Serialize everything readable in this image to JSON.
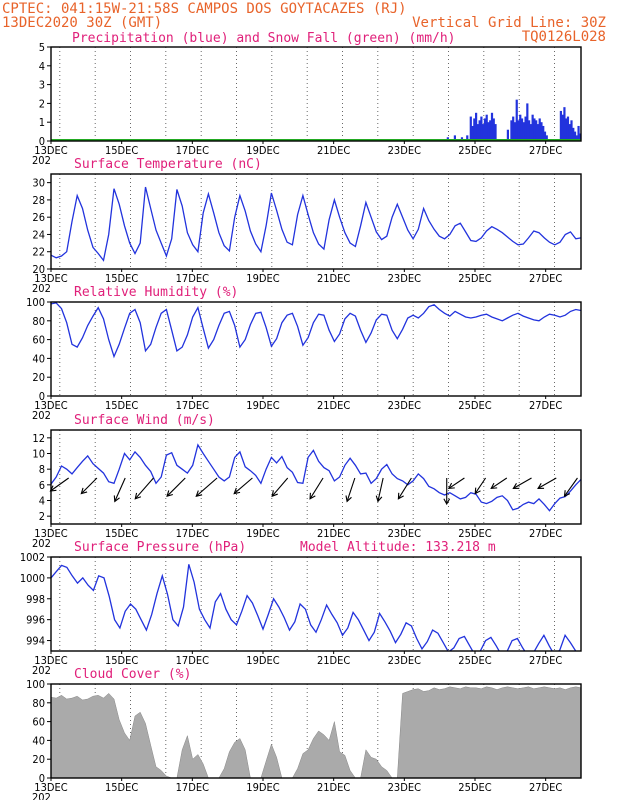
{
  "header": {
    "line1_left": "CPTEC:  041:15W-21:58S  CAMPOS DOS GOYTACAZES (RJ)",
    "line2_left": "13DEC2020 30Z (GMT)",
    "line2_right": "Vertical Grid Line: 30Z",
    "model_id": "TQ0126L028"
  },
  "colors": {
    "header": "#e8632a",
    "panel_title": "#e0207a",
    "series": "#2233dd",
    "snow": "#22aa22",
    "cloud": "#aaaaaa",
    "arrow": "#000000"
  },
  "x_axis": {
    "labels": [
      "13DEC",
      "15DEC",
      "17DEC",
      "19DEC",
      "21DEC",
      "23DEC",
      "25DEC",
      "27DEC"
    ],
    "year_fragment": "202"
  },
  "chart_data": [
    {
      "id": "precip",
      "type": "bar",
      "title": "Precipitation (blue) and Snow Fall (green) (mm/h)",
      "ylim": [
        0,
        5
      ],
      "yticks": [
        "0",
        "1",
        "2",
        "3",
        "4",
        "5"
      ],
      "x_start_day": 13,
      "x_end_day": 28,
      "series": [
        {
          "name": "Precipitation",
          "x_day": [
            24.2,
            24.4,
            24.6,
            24.75,
            24.85,
            24.9,
            24.95,
            25.0,
            25.05,
            25.1,
            25.15,
            25.2,
            25.25,
            25.3,
            25.35,
            25.4,
            25.45,
            25.5,
            25.55,
            25.9,
            26.0,
            26.05,
            26.1,
            26.15,
            26.2,
            26.25,
            26.3,
            26.35,
            26.4,
            26.45,
            26.5,
            26.55,
            26.6,
            26.65,
            26.7,
            26.75,
            26.8,
            26.85,
            26.9,
            26.95,
            27.0,
            27.4,
            27.45,
            27.5,
            27.55,
            27.6,
            27.65,
            27.7,
            27.75,
            27.8,
            27.85,
            27.9,
            27.95
          ],
          "values": [
            0.2,
            0.3,
            0.2,
            0.3,
            1.3,
            0.8,
            1.2,
            1.5,
            0.9,
            1.1,
            1.3,
            0.9,
            1.2,
            1.4,
            1.0,
            1.1,
            1.5,
            1.2,
            0.9,
            0.6,
            1.1,
            1.3,
            1.0,
            2.2,
            1.1,
            1.4,
            1.2,
            1.0,
            1.3,
            2.0,
            1.1,
            0.9,
            1.4,
            1.2,
            1.1,
            0.9,
            1.2,
            1.0,
            0.8,
            0.5,
            0.3,
            1.6,
            1.4,
            1.8,
            1.2,
            1.3,
            0.9,
            1.1,
            0.7,
            0.5,
            0.3,
            0.8,
            0.4
          ]
        },
        {
          "name": "Snow Fall",
          "values": [
            0
          ]
        }
      ]
    },
    {
      "id": "temp",
      "type": "line",
      "title": "Surface Temperature (nC)",
      "ylim": [
        20,
        31
      ],
      "yticks": [
        "20",
        "22",
        "24",
        "26",
        "28",
        "30"
      ],
      "x_start_day": 13,
      "x_end_day": 28,
      "y": [
        21.6,
        21.3,
        21.5,
        22.0,
        25.5,
        28.5,
        27.0,
        24.5,
        22.5,
        21.8,
        21.0,
        24.0,
        29.3,
        27.5,
        25.0,
        23.0,
        21.8,
        23.0,
        29.5,
        27.0,
        24.5,
        23.0,
        21.5,
        23.5,
        29.2,
        27.3,
        24.2,
        22.8,
        22.0,
        26.5,
        28.7,
        26.5,
        24.2,
        22.7,
        22.1,
        26.0,
        28.5,
        26.7,
        24.4,
        22.9,
        22.0,
        25.0,
        28.8,
        26.8,
        24.6,
        23.1,
        22.8,
        26.3,
        28.5,
        26.3,
        24.2,
        22.9,
        22.3,
        25.7,
        28.0,
        26.0,
        24.2,
        23.0,
        22.6,
        25.0,
        27.7,
        26.0,
        24.3,
        23.4,
        23.8,
        26.0,
        27.5,
        26.0,
        24.5,
        23.5,
        24.6,
        27.0,
        25.6,
        24.6,
        23.8,
        23.5,
        24.0,
        25.0,
        25.3,
        24.3,
        23.3,
        23.2,
        23.6,
        24.4,
        24.9,
        24.6,
        24.2,
        23.7,
        23.2,
        22.8,
        22.9,
        23.6,
        24.4,
        24.2,
        23.6,
        23.1,
        22.8,
        23.1,
        24.0,
        24.3,
        23.5,
        23.6
      ]
    },
    {
      "id": "rh",
      "type": "line",
      "title": "Relative Humidity (%)",
      "ylim": [
        0,
        100
      ],
      "yticks": [
        "0",
        "20",
        "40",
        "60",
        "80",
        "100"
      ],
      "x_start_day": 13,
      "x_end_day": 28,
      "y": [
        98,
        99,
        93,
        78,
        55,
        52,
        62,
        75,
        85,
        94,
        82,
        60,
        42,
        55,
        72,
        88,
        92,
        78,
        48,
        55,
        73,
        88,
        92,
        70,
        48,
        52,
        65,
        84,
        94,
        72,
        51,
        60,
        75,
        88,
        90,
        75,
        52,
        60,
        76,
        88,
        89,
        73,
        53,
        61,
        78,
        86,
        88,
        74,
        54,
        62,
        78,
        87,
        86,
        70,
        58,
        66,
        82,
        88,
        85,
        70,
        57,
        67,
        81,
        87,
        86,
        70,
        61,
        71,
        83,
        86,
        83,
        88,
        95,
        97,
        92,
        88,
        85,
        90,
        87,
        84,
        83,
        84,
        86,
        87,
        84,
        82,
        80,
        83,
        86,
        88,
        85,
        83,
        81,
        80,
        84,
        87,
        86,
        84,
        86,
        90,
        92,
        91
      ]
    },
    {
      "id": "wind",
      "type": "line",
      "title": "Surface Wind (m/s)",
      "ylim": [
        1,
        13
      ],
      "yticks": [
        "2",
        "4",
        "6",
        "8",
        "10",
        "12"
      ],
      "x_start_day": 13,
      "x_end_day": 28,
      "y": [
        6.1,
        7.0,
        8.4,
        8.0,
        7.4,
        8.2,
        9.0,
        9.7,
        8.7,
        8.1,
        7.5,
        6.4,
        6.2,
        8.0,
        10.0,
        9.2,
        10.2,
        9.5,
        8.5,
        7.7,
        6.2,
        7.0,
        9.8,
        10.1,
        8.5,
        8.0,
        7.5,
        8.5,
        11.1,
        10.0,
        9.0,
        8.0,
        7.0,
        6.5,
        7.0,
        9.5,
        10.2,
        8.3,
        7.8,
        7.2,
        6.2,
        8.0,
        9.5,
        8.8,
        9.6,
        8.2,
        7.6,
        6.3,
        6.2,
        9.5,
        10.4,
        9.0,
        8.2,
        7.8,
        6.5,
        7.0,
        8.5,
        9.4,
        8.5,
        7.4,
        7.5,
        6.2,
        6.8,
        8.0,
        8.6,
        7.4,
        6.8,
        6.5,
        6.0,
        6.5,
        7.4,
        6.8,
        5.8,
        5.5,
        5.0,
        4.7,
        5.0,
        4.6,
        4.2,
        4.4,
        5.0,
        4.8,
        3.8,
        3.6,
        3.9,
        4.4,
        4.6,
        4.0,
        2.8,
        3.0,
        3.5,
        3.8,
        3.6,
        4.2,
        3.5,
        2.7,
        3.6,
        4.3,
        4.5,
        5.2,
        6.0,
        6.7
      ],
      "arrows": [
        {
          "x_day": 13.5,
          "dx": -0.7,
          "dy": -0.5
        },
        {
          "x_day": 14.3,
          "dx": -0.6,
          "dy": -0.6
        },
        {
          "x_day": 15.1,
          "dx": -0.4,
          "dy": -0.9
        },
        {
          "x_day": 15.9,
          "dx": -0.7,
          "dy": -0.8
        },
        {
          "x_day": 16.8,
          "dx": -0.7,
          "dy": -0.7
        },
        {
          "x_day": 17.7,
          "dx": -0.8,
          "dy": -0.7
        },
        {
          "x_day": 18.7,
          "dx": -0.7,
          "dy": -0.6
        },
        {
          "x_day": 19.7,
          "dx": -0.6,
          "dy": -0.7
        },
        {
          "x_day": 20.7,
          "dx": -0.5,
          "dy": -0.8
        },
        {
          "x_day": 21.6,
          "dx": -0.3,
          "dy": -0.9
        },
        {
          "x_day": 22.4,
          "dx": -0.2,
          "dy": -0.9
        },
        {
          "x_day": 23.2,
          "dx": -0.5,
          "dy": -0.8
        },
        {
          "x_day": 24.2,
          "dx": 0.0,
          "dy": -1.0
        },
        {
          "x_day": 24.7,
          "dx": -0.6,
          "dy": -0.4
        },
        {
          "x_day": 25.3,
          "dx": -0.4,
          "dy": -0.6
        },
        {
          "x_day": 25.9,
          "dx": -0.6,
          "dy": -0.4
        },
        {
          "x_day": 26.6,
          "dx": -0.7,
          "dy": -0.4
        },
        {
          "x_day": 27.3,
          "dx": -0.7,
          "dy": -0.4
        },
        {
          "x_day": 27.9,
          "dx": -0.5,
          "dy": -0.7
        }
      ]
    },
    {
      "id": "pressure",
      "type": "line",
      "title": "Surface Pressure (hPa)",
      "subtitle": "Model Altitude: 133.218 m",
      "ylim": [
        993,
        1002
      ],
      "yticks": [
        "994",
        "996",
        "998",
        "1000",
        "1002"
      ],
      "x_start_day": 13,
      "x_end_day": 28,
      "y": [
        1000.0,
        1000.6,
        1001.2,
        1001.0,
        1000.2,
        999.5,
        1000.0,
        999.3,
        998.8,
        1000.2,
        1000.0,
        998.2,
        996.0,
        995.2,
        996.8,
        997.5,
        997.0,
        996.0,
        995.0,
        996.5,
        998.5,
        1000.2,
        998.4,
        996.0,
        995.4,
        997.2,
        1001.3,
        999.6,
        997.0,
        996.0,
        995.2,
        997.7,
        998.5,
        997.0,
        996.0,
        995.5,
        996.8,
        998.3,
        997.6,
        996.4,
        995.1,
        996.5,
        998.0,
        997.2,
        996.2,
        995.0,
        995.8,
        997.5,
        997.0,
        995.5,
        994.8,
        996.0,
        997.4,
        996.5,
        995.7,
        994.5,
        995.2,
        996.7,
        996.0,
        995.0,
        994.0,
        994.8,
        996.6,
        995.8,
        994.9,
        993.8,
        994.6,
        995.7,
        995.4,
        994.2,
        993.2,
        993.9,
        995.0,
        994.7,
        993.8,
        992.9,
        993.3,
        994.2,
        994.4,
        993.5,
        992.6,
        993.0,
        994.0,
        994.3,
        993.5,
        992.6,
        992.9,
        994.0,
        994.2,
        993.3,
        992.5,
        992.8,
        993.7,
        994.5,
        993.5,
        992.6,
        993.1,
        994.5,
        993.8,
        993.0,
        992.8
      ]
    },
    {
      "id": "cloud",
      "type": "area",
      "title": "Cloud Cover (%)",
      "ylim": [
        0,
        100
      ],
      "yticks": [
        "0",
        "20",
        "40",
        "60",
        "80",
        "100"
      ],
      "x_start_day": 13,
      "x_end_day": 28,
      "y": [
        86,
        85,
        88,
        84,
        85,
        87,
        83,
        84,
        87,
        88,
        85,
        90,
        84,
        62,
        48,
        40,
        66,
        70,
        58,
        35,
        12,
        8,
        2,
        0,
        0,
        30,
        45,
        20,
        25,
        15,
        0,
        0,
        0,
        10,
        28,
        38,
        42,
        30,
        0,
        0,
        0,
        18,
        36,
        22,
        0,
        0,
        0,
        10,
        26,
        30,
        42,
        50,
        46,
        40,
        60,
        28,
        24,
        8,
        0,
        0,
        30,
        22,
        20,
        12,
        8,
        0,
        0,
        90,
        92,
        94,
        95,
        92,
        93,
        96,
        94,
        95,
        97,
        96,
        95,
        97,
        96,
        96,
        95,
        97,
        96,
        94,
        96,
        97,
        96,
        95,
        96,
        97,
        95,
        96,
        97,
        96,
        95,
        96,
        94,
        96,
        97,
        96
      ]
    }
  ]
}
